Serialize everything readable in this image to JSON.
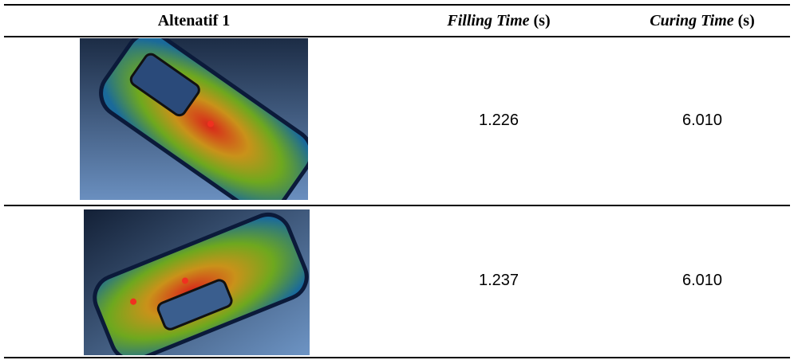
{
  "table": {
    "header": [
      "Altenatif 1",
      {
        "name": "Filling Time",
        "unit": "(s)"
      },
      {
        "name": "Curing Time",
        "unit": "(s)"
      }
    ],
    "rows": [
      [
        "1.226",
        "6.010"
      ],
      [
        "1.237",
        "6.010"
      ]
    ]
  }
}
